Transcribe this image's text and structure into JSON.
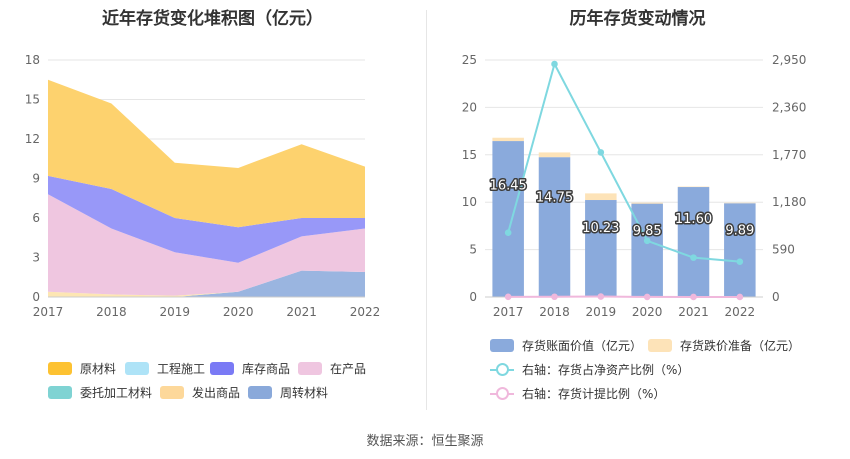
{
  "left_title": "近年存货变化堆积图（亿元）",
  "right_title": "历年存货变动情况",
  "source": "数据来源：恒生聚源",
  "chart_data": [
    {
      "type": "area",
      "title": "近年存货变化堆积图（亿元）",
      "x": [
        "2017",
        "2018",
        "2019",
        "2020",
        "2021",
        "2022"
      ],
      "ylim": [
        0,
        18
      ],
      "yticks": [
        "0",
        "3",
        "6",
        "9",
        "12",
        "15",
        "18"
      ],
      "series": [
        {
          "name": "周转材料",
          "color": "#9ab5e0",
          "values": [
            0,
            0,
            0,
            0.4,
            2.0,
            1.9
          ]
        },
        {
          "name": "发出商品",
          "color": "#fde6b3",
          "values": [
            0.4,
            0.2,
            0.1,
            0,
            0,
            0
          ]
        },
        {
          "name": "委托加工材料",
          "color": "#7fd3d3",
          "values": [
            0,
            0,
            0,
            0,
            0,
            0
          ]
        },
        {
          "name": "在产品",
          "color": "#efc6e0",
          "values": [
            7.4,
            5.0,
            3.3,
            2.2,
            2.6,
            3.3
          ]
        },
        {
          "name": "库存商品",
          "color": "#9898f8",
          "values": [
            1.4,
            3.0,
            2.6,
            2.7,
            1.4,
            0.8
          ]
        },
        {
          "name": "工程施工",
          "color": "#aee3f7",
          "values": [
            0,
            0,
            0,
            0,
            0,
            0
          ]
        },
        {
          "name": "原材料",
          "color": "#fdd26e",
          "values": [
            7.3,
            6.5,
            4.2,
            4.5,
            5.6,
            3.9
          ]
        }
      ],
      "legend": [
        "原材料",
        "工程施工",
        "库存商品",
        "在产品",
        "委托加工材料",
        "发出商品",
        "周转材料"
      ],
      "legend_colors": [
        "#fdc232",
        "#aee3f7",
        "#7a7af5",
        "#efc6e0",
        "#7fd3d3",
        "#fdd89a",
        "#8aa9da"
      ]
    },
    {
      "type": "bar",
      "title": "历年存货变动情况",
      "categories": [
        "2017",
        "2018",
        "2019",
        "2020",
        "2021",
        "2022"
      ],
      "ylim": [
        0,
        25
      ],
      "yticks": [
        "0",
        "5",
        "10",
        "15",
        "20",
        "25"
      ],
      "y2lim": [
        0,
        2950
      ],
      "y2ticks": [
        "0",
        "590",
        "1,180",
        "1,770",
        "2,360",
        "2,950"
      ],
      "series": [
        {
          "name": "存货账面价值（亿元）",
          "color": "#8aaadc",
          "values": [
            16.45,
            14.75,
            10.23,
            9.85,
            11.6,
            9.89
          ],
          "labels": [
            "16.45",
            "14.75",
            "10.23",
            "9.85",
            "11.60",
            "9.89"
          ]
        },
        {
          "name": "存货跌价准备（亿元）",
          "color": "#fde3b8",
          "values": [
            0.35,
            0.5,
            0.7,
            0.1,
            0.05,
            0.05
          ]
        },
        {
          "name": "右轴：存货占净资产比例（%）",
          "color": "#7fd8e0",
          "axis": "right",
          "values": [
            800,
            2900,
            1800,
            700,
            490,
            440
          ]
        },
        {
          "name": "右轴：存货计提比例（%）",
          "color": "#f0b8dc",
          "axis": "right",
          "values": [
            2,
            3,
            6,
            1,
            0.5,
            0.5
          ]
        }
      ]
    }
  ]
}
